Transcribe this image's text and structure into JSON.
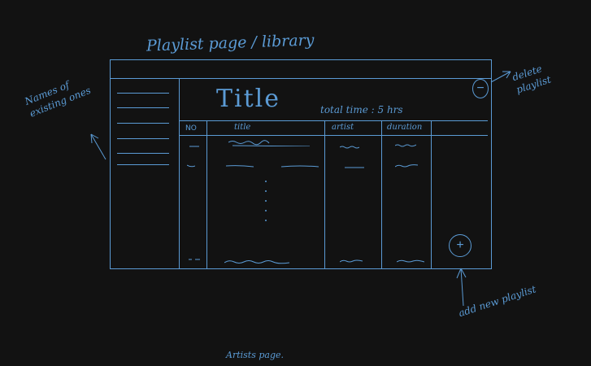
{
  "page_title": "Playlist page / library",
  "footer_note": "Artists page.",
  "annotations": {
    "sidebar": "Names of existing ones",
    "delete": "delete playlist",
    "add": "add new playlist"
  },
  "playlist": {
    "title": "Title",
    "total_time": "total time : 5 hrs",
    "delete_symbol": "−",
    "add_symbol": "+",
    "columns": [
      "NO",
      "title",
      "artist",
      "duration"
    ]
  },
  "colors": {
    "ink": "#5b9bd5",
    "background": "#121212"
  }
}
